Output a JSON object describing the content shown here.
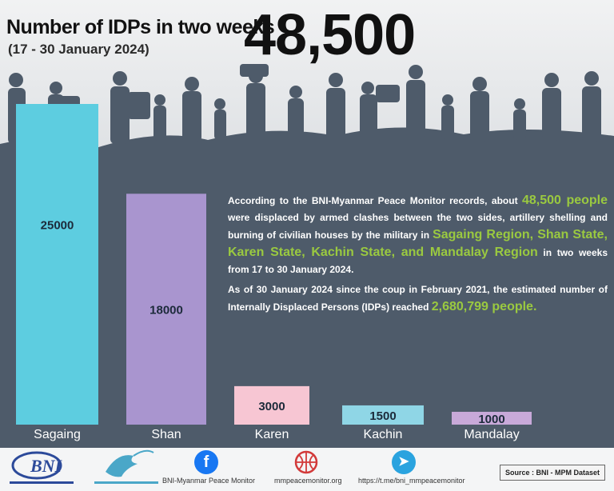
{
  "header": {
    "title": "Number of IDPs in two weeks",
    "subtitle": "(17 - 30 January 2024)",
    "total": "48,500"
  },
  "paragraphs": {
    "p1_a": "According to the BNI-Myanmar Peace Monitor records, about ",
    "p1_hl1": "48,500 people",
    "p1_b": " were displaced by armed clashes between the two sides, artillery shelling and burning of civilian houses by the military in ",
    "p1_hl2": "Sagaing Region, Shan State, Karen State, Kachin State, and Mandalay Region",
    "p1_c": " in two weeks from  17 to 30 January 2024.",
    "p2_a": "As of 30 January 2024 since the coup in February 2021, the estimated number of Internally Displaced Persons (IDPs) reached ",
    "p2_hl": "2,680,799 people."
  },
  "chart_data": {
    "type": "bar",
    "categories": [
      "Sagaing",
      "Shan",
      "Karen",
      "Kachin",
      "Mandalay"
    ],
    "values": [
      25000,
      18000,
      3000,
      1500,
      1000
    ],
    "colors": [
      "#5dcde0",
      "#a995cf",
      "#f7c6d3",
      "#8fd6e6",
      "#c8a9d9"
    ],
    "value_text_color": "#1c2a3a",
    "category_text_color": "#ffffff"
  },
  "footer": {
    "facebook_label": "BNI-Myanmar Peace Monitor",
    "website_label": "mmpeacemonitor.org",
    "telegram_label": "https://t.me/bni_mmpeacemonitor",
    "source": "Source : BNI - MPM Dataset",
    "icons": [
      "bni-logo-icon",
      "dove-logo-icon",
      "facebook-icon",
      "basketball-icon",
      "telegram-icon"
    ]
  },
  "colors": {
    "background": "#4e5b6a",
    "highlight": "#9ac940"
  }
}
